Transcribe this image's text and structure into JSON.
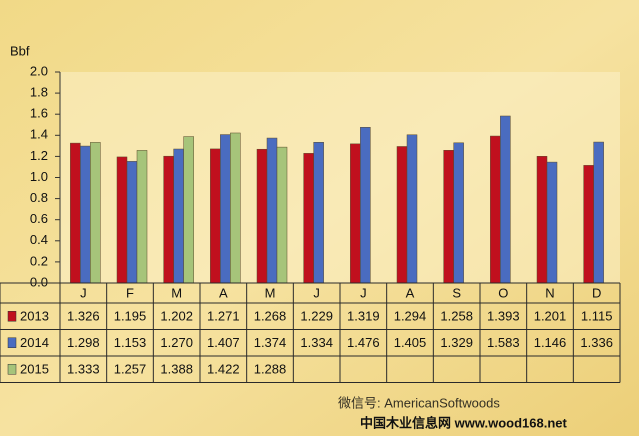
{
  "chart_data": {
    "type": "bar",
    "y_label": "Bbf",
    "categories": [
      "J",
      "F",
      "M",
      "A",
      "M",
      "J",
      "J",
      "A",
      "S",
      "O",
      "N",
      "D"
    ],
    "series": [
      {
        "name": "2013",
        "color": "#c0101e",
        "values": [
          1.326,
          1.195,
          1.202,
          1.271,
          1.268,
          1.229,
          1.319,
          1.294,
          1.258,
          1.393,
          1.201,
          1.115
        ],
        "value_labels": [
          "1.326",
          "1.195",
          "1.202",
          "1.271",
          "1.268",
          "1.229",
          "1.319",
          "1.294",
          "1.258",
          "1.393",
          "1.201",
          "1.115"
        ]
      },
      {
        "name": "2014",
        "color": "#4a6cc0",
        "values": [
          1.298,
          1.153,
          1.27,
          1.407,
          1.374,
          1.334,
          1.476,
          1.405,
          1.329,
          1.583,
          1.146,
          1.336
        ],
        "value_labels": [
          "1.298",
          "1.153",
          "1.270",
          "1.407",
          "1.374",
          "1.334",
          "1.476",
          "1.405",
          "1.329",
          "1.583",
          "1.146",
          "1.336"
        ]
      },
      {
        "name": "2015",
        "color": "#a6c47a",
        "values": [
          1.333,
          1.257,
          1.388,
          1.422,
          1.288,
          null,
          null,
          null,
          null,
          null,
          null,
          null
        ],
        "value_labels": [
          "1.333",
          "1.257",
          "1.388",
          "1.422",
          "1.288",
          null,
          null,
          null,
          null,
          null,
          null,
          null
        ]
      }
    ],
    "ylim": [
      0,
      2
    ],
    "yticks": [
      {
        "value": 0,
        "label": "0.0"
      },
      0.2,
      0.4,
      0.6,
      0.8,
      {
        "value": 1,
        "label": "1.0"
      },
      1.2,
      1.4,
      1.6,
      1.8,
      {
        "value": 2,
        "label": "2.0"
      }
    ],
    "watermark": [
      "微信号: AmericanSoftwoods",
      "中国木业信息网 www.wood168.net"
    ]
  }
}
